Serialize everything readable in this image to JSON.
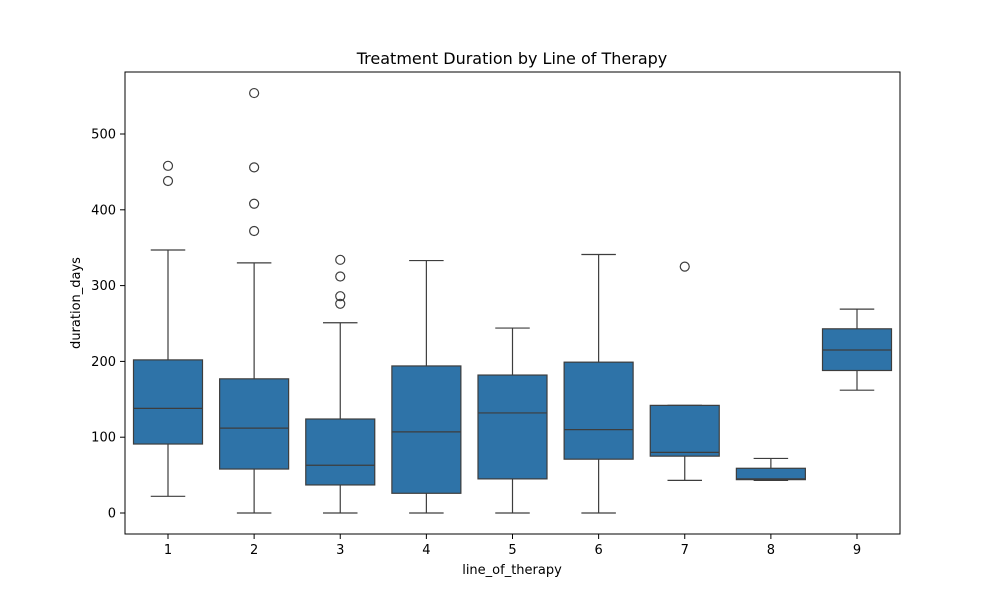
{
  "chart_data": {
    "type": "box",
    "title": "Treatment Duration by Line of Therapy",
    "xlabel": "line_of_therapy",
    "ylabel": "duration_days",
    "ylim": [
      -30,
      580
    ],
    "yticks": [
      0,
      100,
      200,
      300,
      400,
      500
    ],
    "grid": false,
    "legend": "none",
    "colors": {
      "box_fill": "#2e73a8",
      "line": "#3d3d3d",
      "axis": "#000000"
    },
    "categories": [
      "1",
      "2",
      "3",
      "4",
      "5",
      "6",
      "7",
      "8",
      "9"
    ],
    "boxes": [
      {
        "category": "1",
        "whisker_low": 22,
        "q1": 91,
        "median": 138,
        "q3": 202,
        "whisker_high": 347,
        "outliers": [
          438,
          458
        ]
      },
      {
        "category": "2",
        "whisker_low": 0,
        "q1": 58,
        "median": 112,
        "q3": 177,
        "whisker_high": 330,
        "outliers": [
          372,
          408,
          456,
          554
        ]
      },
      {
        "category": "3",
        "whisker_low": 0,
        "q1": 37,
        "median": 63,
        "q3": 124,
        "whisker_high": 251,
        "outliers": [
          276,
          286,
          312,
          334
        ]
      },
      {
        "category": "4",
        "whisker_low": 0,
        "q1": 26,
        "median": 107,
        "q3": 194,
        "whisker_high": 333,
        "outliers": []
      },
      {
        "category": "5",
        "whisker_low": 0,
        "q1": 45,
        "median": 132,
        "q3": 182,
        "whisker_high": 244,
        "outliers": []
      },
      {
        "category": "6",
        "whisker_low": 0,
        "q1": 71,
        "median": 110,
        "q3": 199,
        "whisker_high": 341,
        "outliers": []
      },
      {
        "category": "7",
        "whisker_low": 43,
        "q1": 75,
        "median": 80,
        "q3": 142,
        "whisker_high": 142,
        "outliers": [
          325
        ]
      },
      {
        "category": "8",
        "whisker_low": 43,
        "q1": 44,
        "median": 45,
        "q3": 59,
        "whisker_high": 72,
        "outliers": []
      },
      {
        "category": "9",
        "whisker_low": 162,
        "q1": 188,
        "median": 215,
        "q3": 243,
        "whisker_high": 269,
        "outliers": []
      }
    ]
  }
}
